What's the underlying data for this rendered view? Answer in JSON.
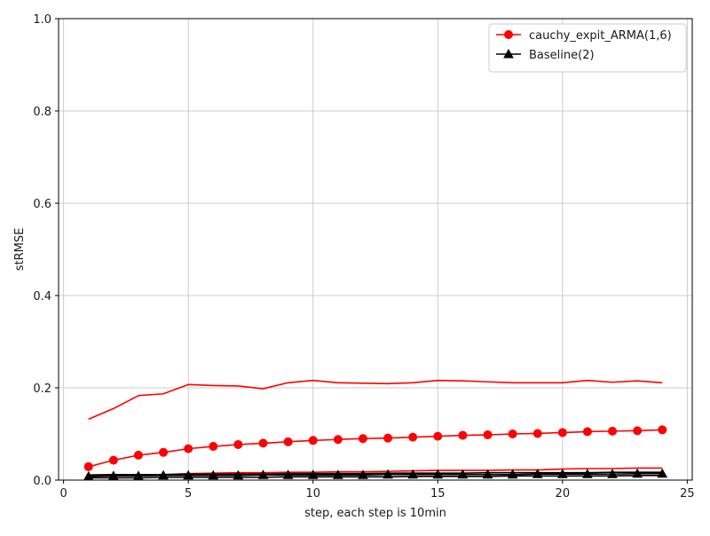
{
  "chart_data": {
    "type": "line",
    "title": "",
    "xlabel": "step, each step is 10min",
    "ylabel": "stRMSE",
    "xlim": [
      -0.2,
      25.2
    ],
    "ylim": [
      0,
      1.0
    ],
    "x_ticks": [
      0,
      5,
      10,
      15,
      20,
      25
    ],
    "x_tick_labels": [
      "0",
      "5",
      "10",
      "15",
      "20",
      "25"
    ],
    "y_ticks": [
      0.0,
      0.2,
      0.4,
      0.6,
      0.8,
      1.0
    ],
    "y_tick_labels": [
      "0.0",
      "0.2",
      "0.4",
      "0.6",
      "0.8",
      "1.0"
    ],
    "grid": true,
    "legend_position": "top-right",
    "x": [
      1,
      2,
      3,
      4,
      5,
      6,
      7,
      8,
      9,
      10,
      11,
      12,
      13,
      14,
      15,
      16,
      17,
      18,
      19,
      20,
      21,
      22,
      23,
      24
    ],
    "series": [
      {
        "name": "cauchy_expit_ARMA(1,6)",
        "color": "#ff0000",
        "marker": "circle",
        "values": [
          0.029,
          0.043,
          0.054,
          0.06,
          0.068,
          0.073,
          0.077,
          0.08,
          0.083,
          0.086,
          0.088,
          0.09,
          0.091,
          0.093,
          0.095,
          0.097,
          0.098,
          0.1,
          0.101,
          0.103,
          0.105,
          0.106,
          0.107,
          0.109
        ]
      },
      {
        "name": "Baseline(2)",
        "color": "#000000",
        "marker": "triangle",
        "values": [
          0.008,
          0.009,
          0.009,
          0.01,
          0.01,
          0.01,
          0.01,
          0.011,
          0.011,
          0.011,
          0.011,
          0.011,
          0.012,
          0.012,
          0.012,
          0.012,
          0.012,
          0.012,
          0.013,
          0.013,
          0.013,
          0.013,
          0.014,
          0.014
        ]
      },
      {
        "color": "#ff0000",
        "marker": "none",
        "values": [
          0.132,
          0.155,
          0.183,
          0.187,
          0.207,
          0.205,
          0.204,
          0.198,
          0.211,
          0.216,
          0.211,
          0.21,
          0.209,
          0.211,
          0.216,
          0.215,
          0.213,
          0.211,
          0.211,
          0.211,
          0.216,
          0.212,
          0.215,
          0.211
        ]
      },
      {
        "color": "#ff0000",
        "marker": "none",
        "values": [
          0.011,
          0.012,
          0.011,
          0.012,
          0.014,
          0.015,
          0.016,
          0.016,
          0.017,
          0.017,
          0.018,
          0.018,
          0.019,
          0.02,
          0.021,
          0.021,
          0.021,
          0.022,
          0.022,
          0.024,
          0.025,
          0.025,
          0.026,
          0.026
        ]
      },
      {
        "color": "#000000",
        "marker": "none",
        "values": [
          0.005,
          0.005,
          0.005,
          0.006,
          0.006,
          0.006,
          0.006,
          0.006,
          0.007,
          0.007,
          0.007,
          0.007,
          0.007,
          0.008,
          0.008,
          0.008,
          0.008,
          0.009,
          0.009,
          0.009,
          0.009,
          0.009,
          0.01,
          0.01
        ]
      },
      {
        "color": "#000000",
        "marker": "none",
        "values": [
          0.011,
          0.012,
          0.012,
          0.012,
          0.013,
          0.013,
          0.013,
          0.013,
          0.014,
          0.014,
          0.014,
          0.014,
          0.015,
          0.015,
          0.015,
          0.015,
          0.016,
          0.016,
          0.016,
          0.016,
          0.016,
          0.017,
          0.017,
          0.017
        ]
      }
    ]
  }
}
